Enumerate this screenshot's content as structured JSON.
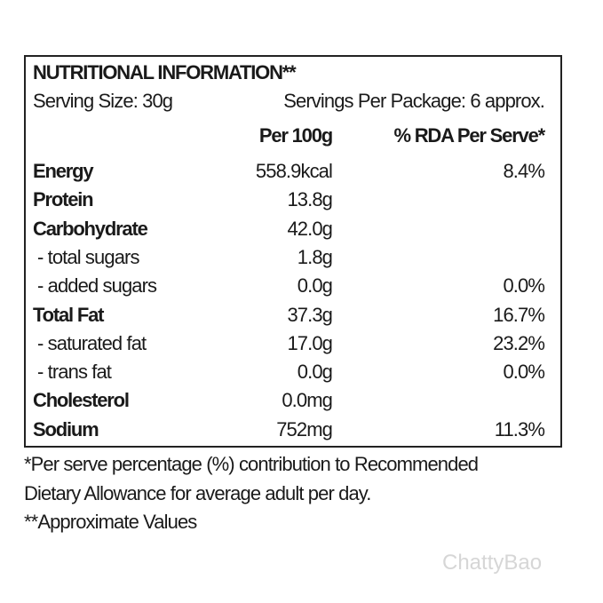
{
  "label": {
    "title": "NUTRITIONAL INFORMATION**",
    "serving_size": "Serving Size: 30g",
    "servings_per_package": "Servings Per Package: 6 approx.",
    "columns": [
      "Per 100g",
      "% RDA Per Serve*"
    ],
    "rows": [
      {
        "name": "Energy",
        "per_100g": "558.9kcal",
        "rda": "8.4%",
        "bold": true
      },
      {
        "name": "Protein",
        "per_100g": "13.8g",
        "bold": true
      },
      {
        "name": "Carbohydrate",
        "per_100g": "42.0g",
        "bold": true
      },
      {
        "name": "- total sugars",
        "per_100g": "1.8g",
        "bold": false
      },
      {
        "name": "- added sugars",
        "per_100g": "0.0g",
        "rda": "0.0%",
        "bold": false
      },
      {
        "name": "Total Fat",
        "per_100g": "37.3g",
        "rda": "16.7%",
        "bold": true
      },
      {
        "name": "- saturated fat",
        "per_100g": "17.0g",
        "rda": "23.2%",
        "bold": false
      },
      {
        "name": "- trans fat",
        "per_100g": "0.0g",
        "rda": "0.0%",
        "bold": false
      },
      {
        "name": "Cholesterol",
        "per_100g": "0.0mg",
        "bold": true
      },
      {
        "name": "Sodium",
        "per_100g": "752mg",
        "rda": "11.3%",
        "bold": true
      }
    ],
    "footnotes": [
      "*Per serve percentage (%) contribution to Recommended",
      "Dietary Allowance for average adult per day.",
      "**Approximate Values"
    ]
  },
  "watermark": "ChattyBao"
}
